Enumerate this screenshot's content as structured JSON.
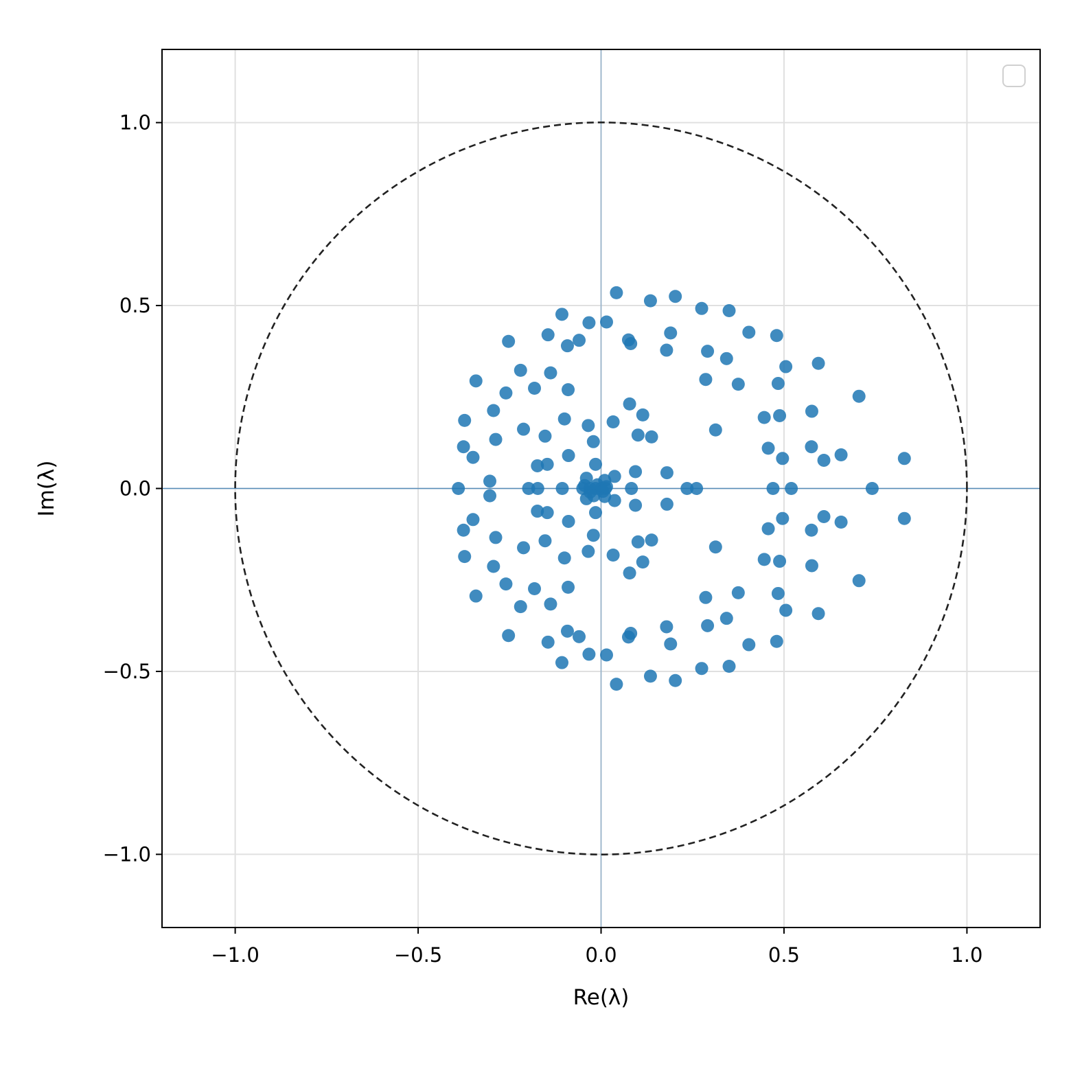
{
  "chart_data": {
    "type": "scatter",
    "title": "",
    "xlabel": "Re(λ)",
    "ylabel": "Im(λ)",
    "xlim": [
      -1.2,
      1.2
    ],
    "ylim": [
      -1.2,
      1.2
    ],
    "grid": true,
    "legend": {
      "placement": "top-right",
      "entries": []
    },
    "unit_circle": {
      "radius": 1.0,
      "style": "dashed"
    },
    "xticks": [
      "−1.0",
      "−0.5",
      "0.0",
      "0.5",
      "1.0"
    ],
    "yticks": [
      "−1.0",
      "−0.5",
      "0.0",
      "0.5",
      "1.0"
    ],
    "xtick_values": [
      -1.0,
      -0.5,
      0.0,
      0.5,
      1.0
    ],
    "ytick_values": [
      -1.0,
      -0.5,
      0.0,
      0.5,
      1.0
    ],
    "colors": {
      "points": "#1f77b4",
      "axes_lines": "#4682b4",
      "circle": "#222222",
      "grid": "#e0e0e0"
    },
    "points_upper": [
      [
        0.042,
        0.535
      ],
      [
        0.135,
        0.513
      ],
      [
        0.203,
        0.525
      ],
      [
        0.275,
        0.492
      ],
      [
        0.35,
        0.486
      ],
      [
        -0.107,
        0.476
      ],
      [
        -0.033,
        0.453
      ],
      [
        0.015,
        0.455
      ],
      [
        0.404,
        0.427
      ],
      [
        0.48,
        0.418
      ],
      [
        0.19,
        0.425
      ],
      [
        -0.253,
        0.402
      ],
      [
        -0.145,
        0.42
      ],
      [
        -0.06,
        0.405
      ],
      [
        -0.092,
        0.39
      ],
      [
        0.075,
        0.406
      ],
      [
        0.081,
        0.396
      ],
      [
        0.179,
        0.378
      ],
      [
        0.291,
        0.375
      ],
      [
        0.343,
        0.355
      ],
      [
        0.505,
        0.333
      ],
      [
        0.594,
        0.342
      ],
      [
        -0.22,
        0.323
      ],
      [
        -0.138,
        0.316
      ],
      [
        -0.342,
        0.294
      ],
      [
        0.286,
        0.298
      ],
      [
        0.375,
        0.285
      ],
      [
        0.484,
        0.287
      ],
      [
        -0.26,
        0.261
      ],
      [
        -0.182,
        0.274
      ],
      [
        -0.09,
        0.27
      ],
      [
        0.078,
        0.231
      ],
      [
        0.705,
        0.252
      ],
      [
        -0.294,
        0.213
      ],
      [
        0.576,
        0.211
      ],
      [
        0.488,
        0.199
      ],
      [
        0.446,
        0.194
      ],
      [
        0.114,
        0.201
      ],
      [
        -0.1,
        0.19
      ],
      [
        -0.373,
        0.186
      ],
      [
        0.033,
        0.182
      ],
      [
        -0.035,
        0.172
      ],
      [
        0.313,
        0.16
      ],
      [
        -0.212,
        0.162
      ],
      [
        -0.288,
        0.134
      ],
      [
        -0.153,
        0.143
      ],
      [
        0.101,
        0.146
      ],
      [
        0.138,
        0.141
      ],
      [
        -0.021,
        0.128
      ],
      [
        0.457,
        0.11
      ],
      [
        -0.376,
        0.114
      ],
      [
        0.575,
        0.114
      ],
      [
        -0.35,
        0.085
      ],
      [
        -0.089,
        0.09
      ],
      [
        0.656,
        0.092
      ],
      [
        0.496,
        0.082
      ],
      [
        0.609,
        0.077
      ],
      [
        0.829,
        0.082
      ],
      [
        -0.015,
        0.066
      ],
      [
        -0.147,
        0.066
      ],
      [
        -0.174,
        0.062
      ],
      [
        0.094,
        0.046
      ],
      [
        0.18,
        0.043
      ],
      [
        0.037,
        0.033
      ],
      [
        -0.304,
        0.02
      ],
      [
        -0.04,
        0.028
      ],
      [
        0.01,
        0.022
      ]
    ],
    "points_real": [
      [
        -0.39,
        0.0
      ],
      [
        -0.198,
        0.0
      ],
      [
        -0.173,
        0.0
      ],
      [
        -0.106,
        0.0
      ],
      [
        0.083,
        0.0
      ],
      [
        0.235,
        0.0
      ],
      [
        0.261,
        0.0
      ],
      [
        0.47,
        0.0
      ],
      [
        0.52,
        0.0
      ],
      [
        0.741,
        0.0
      ],
      [
        -0.05,
        0.0
      ],
      [
        -0.03,
        0.0
      ],
      [
        -0.015,
        0.0
      ],
      [
        0.0,
        0.0
      ],
      [
        0.012,
        0.0
      ]
    ],
    "extra_near_origin": [
      [
        -0.03,
        -0.01
      ],
      [
        -0.01,
        0.01
      ],
      [
        0.005,
        -0.008
      ],
      [
        -0.045,
        0.008
      ],
      [
        -0.02,
        -0.02
      ],
      [
        0.015,
        0.005
      ]
    ]
  }
}
